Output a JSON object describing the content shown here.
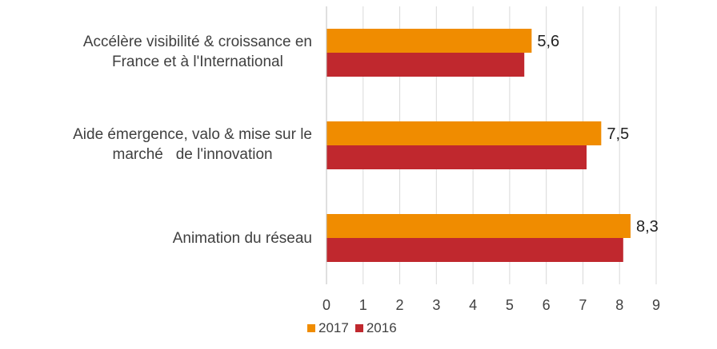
{
  "chart_data": {
    "type": "bar",
    "orientation": "horizontal",
    "categories": [
      "Accélère visibilité & croissance en\nFrance et à l'International",
      "Aide émergence, valo & mise sur le\nmarché   de l'innovation",
      "Animation du réseau"
    ],
    "series": [
      {
        "name": "2017",
        "color": "#f08c00",
        "values": [
          5.6,
          7.5,
          8.3
        ],
        "show_labels": true
      },
      {
        "name": "2016",
        "color": "#c0282e",
        "values": [
          5.4,
          7.1,
          8.1
        ],
        "show_labels": false
      }
    ],
    "data_labels": [
      "5,6",
      "7,5",
      "8,3"
    ],
    "xlim": [
      0,
      9
    ],
    "xticks": [
      "0",
      "1",
      "2",
      "3",
      "4",
      "5",
      "6",
      "7",
      "8",
      "9"
    ],
    "grid": true,
    "legend_position": "bottom",
    "title": "",
    "xlabel": "",
    "ylabel": ""
  }
}
